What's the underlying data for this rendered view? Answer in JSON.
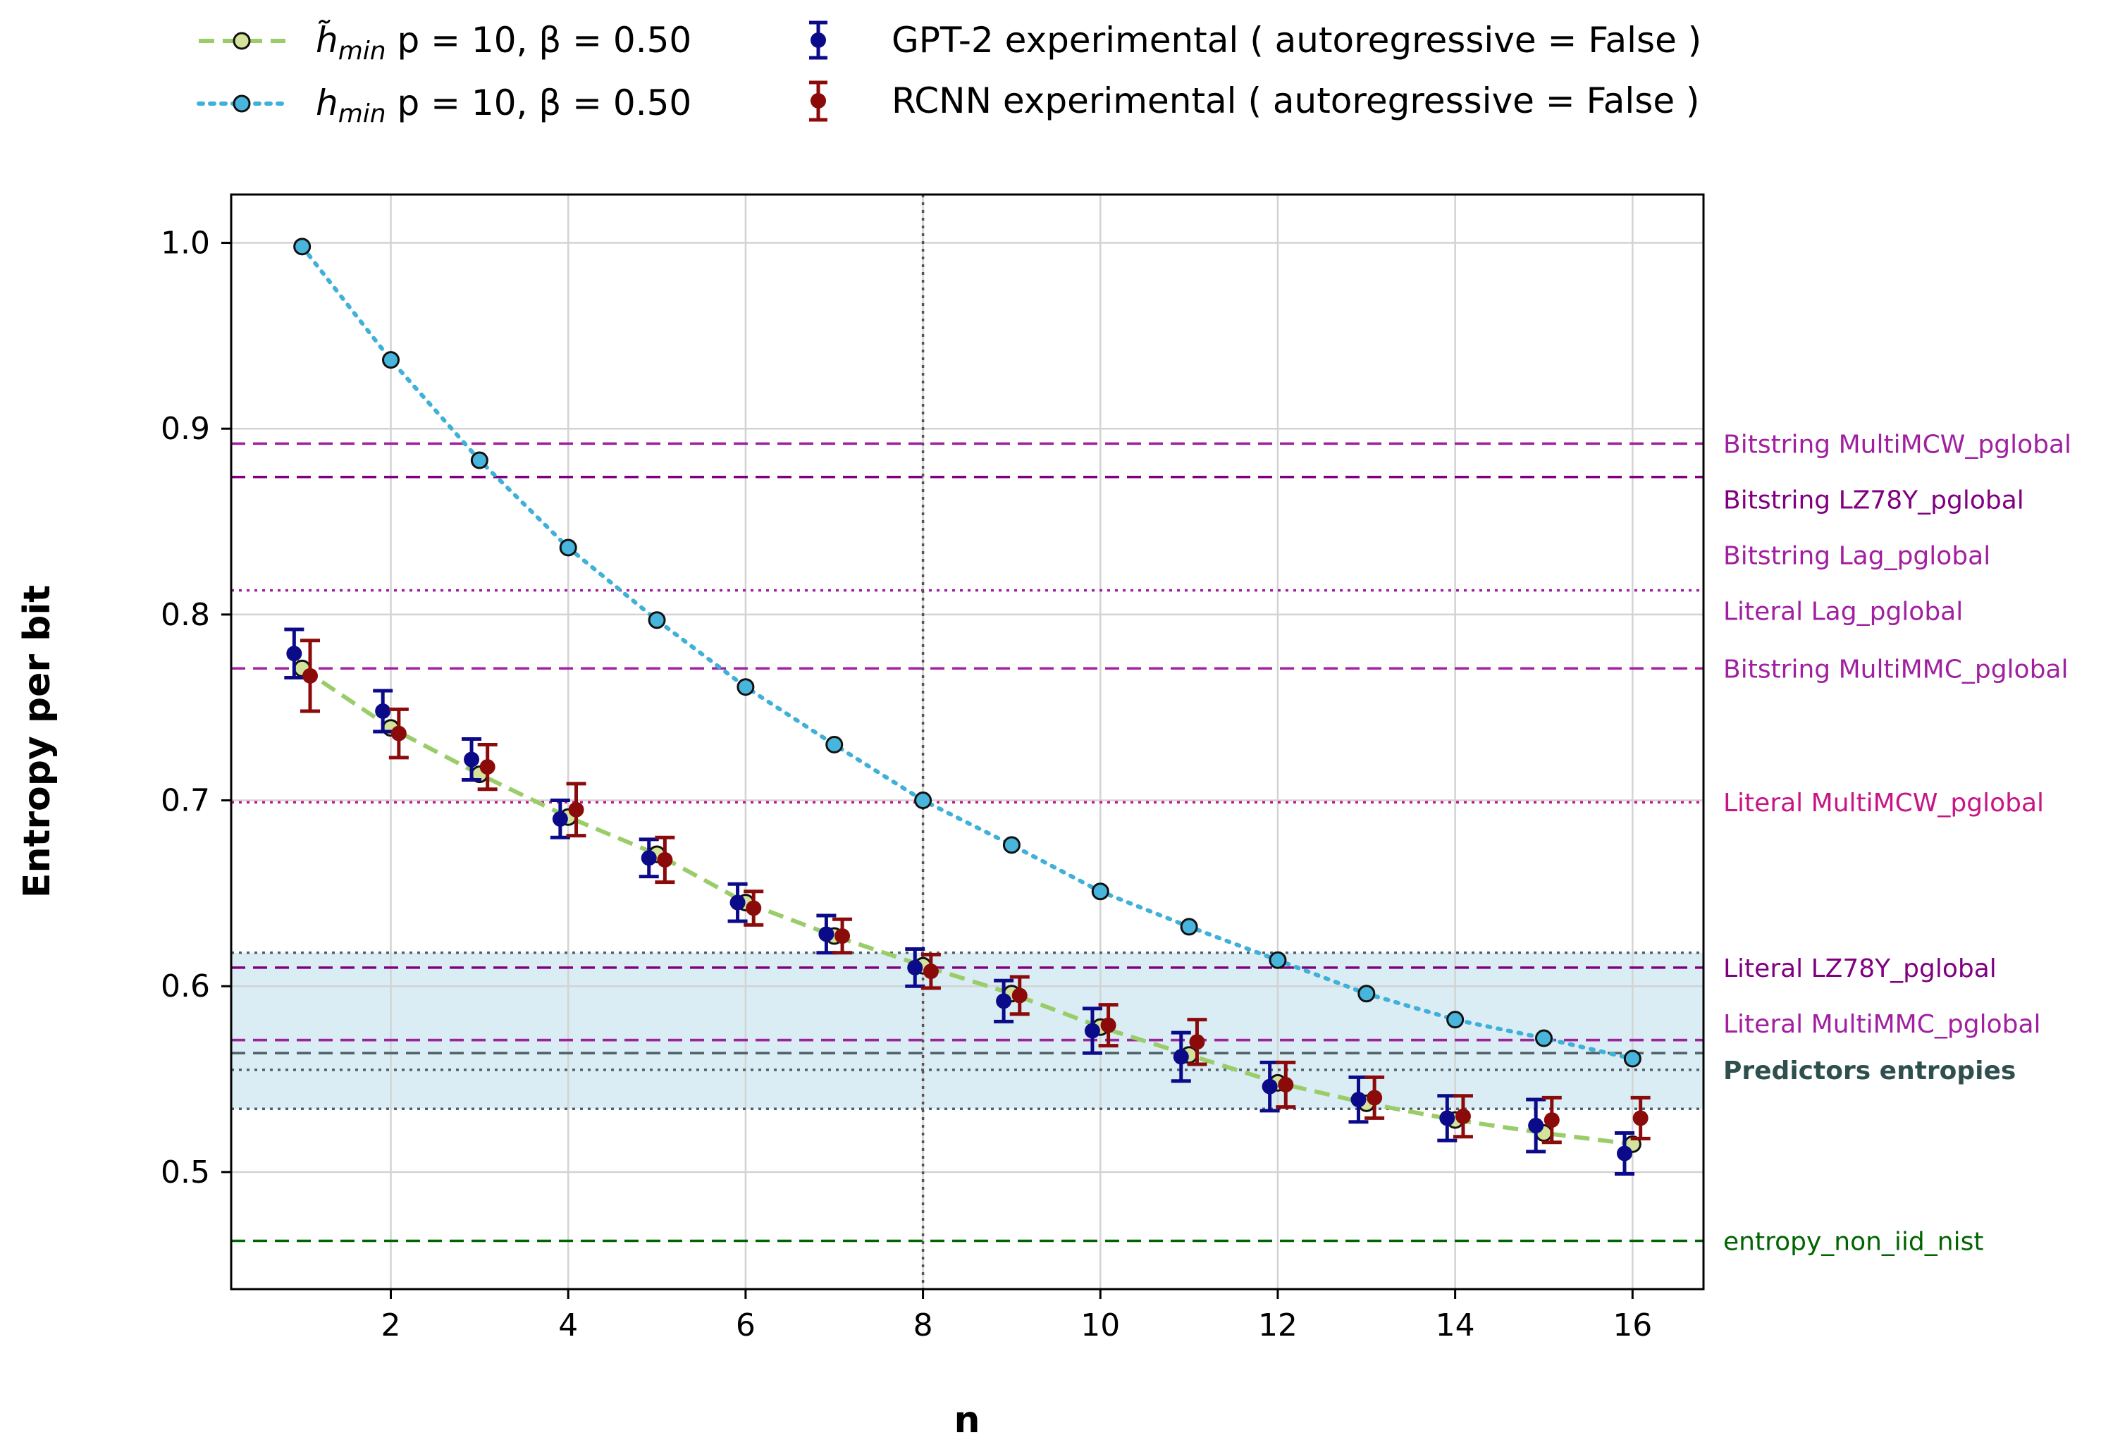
{
  "chart_data": {
    "type": "line",
    "title": "",
    "xlabel": "n",
    "ylabel": "Entropy per bit",
    "xlim": [
      0.2,
      16.8
    ],
    "ylim": [
      0.437,
      1.026
    ],
    "grid": true,
    "legend_position": "top",
    "x_ticks": [
      2,
      4,
      6,
      8,
      10,
      12,
      14,
      16
    ],
    "y_ticks": [
      0.5,
      0.6,
      0.7,
      0.8,
      0.9,
      1.0
    ],
    "x_tick_labels": [
      "2",
      "4",
      "6",
      "8",
      "10",
      "12",
      "14",
      "16"
    ],
    "y_tick_labels": [
      "0.5",
      "0.6",
      "0.7",
      "0.8",
      "0.9",
      "1.0"
    ],
    "x": [
      1,
      2,
      3,
      4,
      5,
      6,
      7,
      8,
      9,
      10,
      11,
      12,
      13,
      14,
      15,
      16
    ],
    "legend": {
      "tilde_line": {
        "symbol": "h̃",
        "sub": "min",
        "params": " p = 10, β = 0.50"
      },
      "hmin_line": {
        "symbol": "h",
        "sub": "min",
        "params": " p = 10, β = 0.50"
      },
      "gpt2": "GPT-2 experimental ( autoregressive = False )",
      "rcnn": "RCNN experimental ( autoregressive = False )"
    },
    "series": [
      {
        "name": "h̃_min p = 10, β = 0.50",
        "style": "dashed",
        "color": "#9acd6a",
        "marker_color": "#d4e29a",
        "values": [
          0.771,
          0.739,
          0.714,
          0.691,
          0.671,
          0.645,
          0.627,
          0.611,
          0.596,
          0.578,
          0.563,
          0.548,
          0.537,
          0.528,
          0.521,
          0.515
        ]
      },
      {
        "name": "h_min p = 10, β = 0.50",
        "style": "dotted",
        "color": "#3fb0d8",
        "marker_color": "#47b5dc",
        "values": [
          0.998,
          0.937,
          0.883,
          0.836,
          0.797,
          0.761,
          0.73,
          0.7,
          0.676,
          0.651,
          0.632,
          0.614,
          0.596,
          0.582,
          0.572,
          0.561
        ]
      },
      {
        "name": "GPT-2 experimental ( autoregressive = False )",
        "color": "#0b0b8a",
        "x_offset": -0.09,
        "values": [
          0.779,
          0.748,
          0.722,
          0.69,
          0.669,
          0.645,
          0.628,
          0.61,
          0.592,
          0.576,
          0.562,
          0.546,
          0.539,
          0.529,
          0.525,
          0.51
        ],
        "errors": [
          0.013,
          0.011,
          0.011,
          0.01,
          0.01,
          0.01,
          0.01,
          0.01,
          0.011,
          0.012,
          0.013,
          0.013,
          0.012,
          0.012,
          0.014,
          0.011
        ]
      },
      {
        "name": "RCNN experimental ( autoregressive = False )",
        "color": "#8b0a0a",
        "x_offset": 0.09,
        "values": [
          0.767,
          0.736,
          0.718,
          0.695,
          0.668,
          0.642,
          0.627,
          0.608,
          0.595,
          0.579,
          0.57,
          0.547,
          0.54,
          0.53,
          0.528,
          0.529
        ],
        "errors": [
          0.019,
          0.013,
          0.012,
          0.014,
          0.012,
          0.009,
          0.009,
          0.009,
          0.01,
          0.011,
          0.012,
          0.012,
          0.011,
          0.011,
          0.012,
          0.011
        ]
      }
    ],
    "vertical_line": {
      "x": 8,
      "style": "dotted",
      "color": "#555555"
    },
    "shaded_band": {
      "y_min": 0.534,
      "y_max": 0.618,
      "color": "#add8e6"
    },
    "band_lines": [
      0.534,
      0.555,
      0.564,
      0.571,
      0.618
    ],
    "band_label": {
      "text": "Predictors entropies",
      "color": "#2f4f4f",
      "label_y": 0.555
    },
    "reference_lines": [
      {
        "label": "Bitstring MultiMCW_pglobal",
        "y": 0.892,
        "label_y": 0.892,
        "style": "dashed",
        "color": "#a020a0"
      },
      {
        "label": "Bitstring LZ78Y_pglobal",
        "y": 0.874,
        "label_y": 0.862,
        "style": "dashed",
        "color": "#800080"
      },
      {
        "label": "Bitstring Lag_pglobal",
        "y": 0.813,
        "label_y": 0.832,
        "style": "dotted",
        "color": "#a020a0"
      },
      {
        "label": "Literal Lag_pglobal",
        "y": 0.813,
        "label_y": 0.802,
        "style": "dotted",
        "color": "#a020a0"
      },
      {
        "label": "Bitstring MultiMMC_pglobal",
        "y": 0.771,
        "label_y": 0.771,
        "style": "dashed",
        "color": "#a020a0"
      },
      {
        "label": "Literal MultiMCW_pglobal",
        "y": 0.699,
        "label_y": 0.699,
        "style": "dotted",
        "color": "#c71585"
      },
      {
        "label": "Literal LZ78Y_pglobal",
        "y": 0.61,
        "label_y": 0.61,
        "style": "dashed",
        "color": "#800080"
      },
      {
        "label": "Literal MultiMMC_pglobal",
        "y": 0.571,
        "label_y": 0.58,
        "style": "dashed",
        "color": "#a020a0"
      },
      {
        "label": "entropy_non_iid_nist",
        "y": 0.463,
        "label_y": 0.463,
        "style": "dashed",
        "color": "#006400"
      }
    ]
  }
}
